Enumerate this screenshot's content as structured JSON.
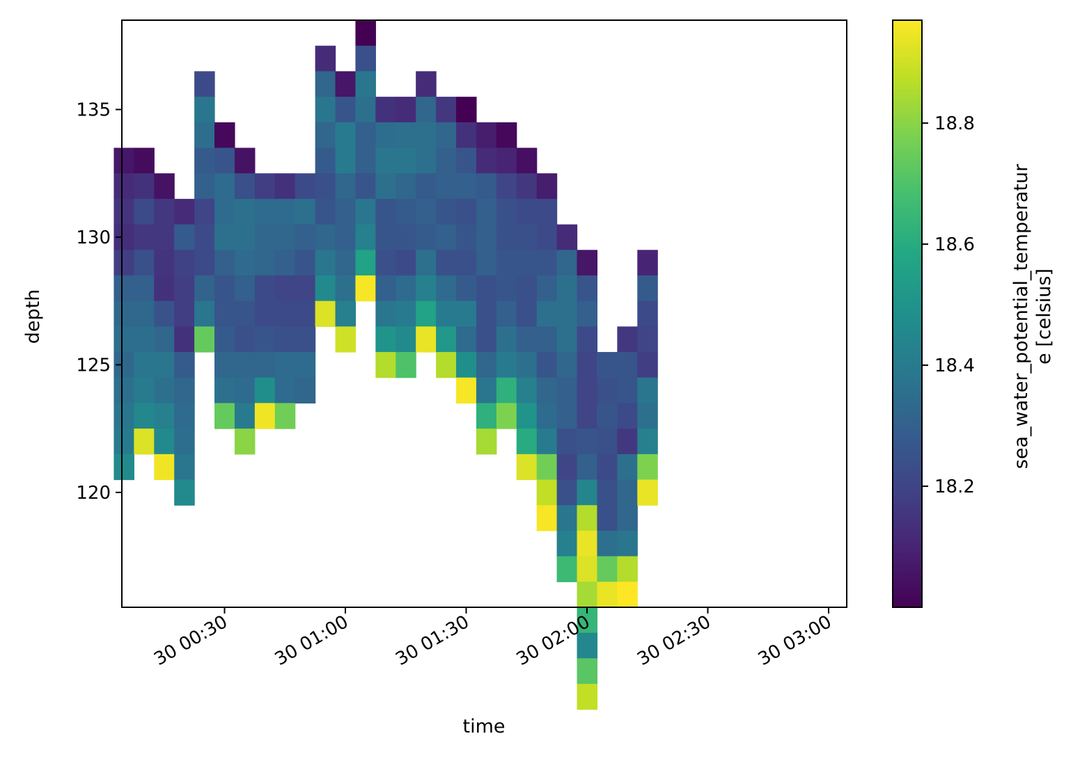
{
  "chart_data": {
    "type": "heatmap",
    "xlabel": "time",
    "ylabel": "depth",
    "colorbar_label_lines": [
      "sea_water_potential_temperatur",
      "e [celsius]"
    ],
    "x_ticks": [
      "30 00:30",
      "30 01:00",
      "30 01:30",
      "30 02:00",
      "30 02:30",
      "30 03:00"
    ],
    "x_tick_times": [
      30,
      60,
      90,
      120,
      150,
      180
    ],
    "y_ticks": [
      "120",
      "125",
      "130",
      "135"
    ],
    "y_tick_values": [
      120,
      125,
      130,
      135
    ],
    "colorbar_ticks": [
      "18.2",
      "18.4",
      "18.6",
      "18.8"
    ],
    "colorbar_tick_values": [
      18.2,
      18.4,
      18.6,
      18.8
    ],
    "colormap": "viridis",
    "xlim_minutes": [
      4.5,
      184.5
    ],
    "ylim": [
      115.5,
      138.5
    ],
    "clim": [
      18.0,
      18.97
    ],
    "bin_minutes": 5,
    "bin_depth": 1,
    "columns": [
      {
        "t": 5,
        "depth_top": 133.5,
        "values": [
          18.06,
          18.12,
          18.15,
          18.13,
          18.18,
          18.3,
          18.33,
          18.35,
          18.33,
          18.36,
          18.38,
          18.4,
          18.46
        ]
      },
      {
        "t": 10,
        "depth_top": 133.5,
        "values": [
          18.03,
          18.14,
          18.22,
          18.16,
          18.24,
          18.3,
          18.33,
          18.35,
          18.38,
          18.4,
          18.45,
          18.92
        ]
      },
      {
        "t": 15,
        "depth_top": 132.5,
        "values": [
          18.05,
          18.16,
          18.16,
          18.15,
          18.14,
          18.25,
          18.32,
          18.38,
          18.36,
          18.42,
          18.46,
          18.95
        ]
      },
      {
        "t": 20,
        "depth_top": 131.5,
        "values": [
          18.12,
          18.28,
          18.19,
          18.18,
          18.18,
          18.14,
          18.28,
          18.32,
          18.34,
          18.35,
          18.38,
          18.46
        ]
      },
      {
        "t": 25,
        "depth_top": 136.5,
        "values": [
          18.22,
          18.38,
          18.35,
          18.28,
          18.3,
          18.2,
          18.22,
          18.22,
          18.31,
          18.38,
          18.74
        ]
      },
      {
        "t": 30,
        "depth_top": 134.5,
        "values": [
          18.02,
          18.26,
          18.34,
          18.34,
          18.36,
          18.3,
          18.26,
          18.26,
          18.28,
          18.32,
          18.36,
          18.74
        ]
      },
      {
        "t": 35,
        "depth_top": 133.5,
        "values": [
          18.05,
          18.24,
          18.36,
          18.36,
          18.34,
          18.3,
          18.26,
          18.24,
          18.32,
          18.34,
          18.4,
          18.8
        ]
      },
      {
        "t": 40,
        "depth_top": 132.5,
        "values": [
          18.18,
          18.34,
          18.32,
          18.32,
          18.22,
          18.22,
          18.26,
          18.32,
          18.48,
          18.95
        ]
      },
      {
        "t": 45,
        "depth_top": 132.5,
        "values": [
          18.14,
          18.34,
          18.32,
          18.3,
          18.2,
          18.22,
          18.24,
          18.34,
          18.34,
          18.76
        ]
      },
      {
        "t": 50,
        "depth_top": 132.5,
        "values": [
          18.22,
          18.36,
          18.3,
          18.26,
          18.2,
          18.22,
          18.24,
          18.34,
          18.32
        ]
      },
      {
        "t": 55,
        "depth_top": 137.5,
        "values": [
          18.12,
          18.32,
          18.38,
          18.32,
          18.28,
          18.24,
          18.26,
          18.32,
          18.38,
          18.46,
          18.92
        ]
      },
      {
        "t": 60,
        "depth_top": 136.5,
        "values": [
          18.06,
          18.26,
          18.4,
          18.4,
          18.32,
          18.3,
          18.3,
          18.32,
          18.36,
          18.42,
          18.9
        ]
      },
      {
        "t": 65,
        "depth_top": 138.5,
        "values": [
          18.0,
          18.24,
          18.38,
          18.36,
          18.3,
          18.3,
          18.26,
          18.38,
          18.42,
          18.56,
          18.96
        ]
      },
      {
        "t": 70,
        "depth_top": 135.5,
        "values": [
          18.14,
          18.35,
          18.38,
          18.36,
          18.26,
          18.26,
          18.24,
          18.3,
          18.38,
          18.5,
          18.86
        ]
      },
      {
        "t": 75,
        "depth_top": 135.5,
        "values": [
          18.12,
          18.36,
          18.38,
          18.32,
          18.28,
          18.26,
          18.22,
          18.34,
          18.4,
          18.46,
          18.7
        ]
      },
      {
        "t": 80,
        "depth_top": 136.5,
        "values": [
          18.12,
          18.32,
          18.36,
          18.36,
          18.28,
          18.3,
          18.28,
          18.36,
          18.42,
          18.56,
          18.94
        ]
      },
      {
        "t": 85,
        "depth_top": 135.5,
        "values": [
          18.16,
          18.32,
          18.3,
          18.3,
          18.26,
          18.3,
          18.24,
          18.34,
          18.4,
          18.52,
          18.86
        ]
      },
      {
        "t": 90,
        "depth_top": 135.5,
        "values": [
          18.0,
          18.14,
          18.26,
          18.3,
          18.24,
          18.26,
          18.24,
          18.28,
          18.4,
          18.34,
          18.48,
          18.96
        ]
      },
      {
        "t": 95,
        "depth_top": 134.5,
        "values": [
          18.08,
          18.12,
          18.28,
          18.3,
          18.3,
          18.3,
          18.24,
          18.24,
          18.24,
          18.32,
          18.38,
          18.62,
          18.84
        ]
      },
      {
        "t": 100,
        "depth_top": 134.5,
        "values": [
          18.02,
          18.1,
          18.2,
          18.24,
          18.24,
          18.26,
          18.26,
          18.3,
          18.36,
          18.4,
          18.62,
          18.78
        ]
      },
      {
        "t": 105,
        "depth_top": 133.5,
        "values": [
          18.04,
          18.16,
          18.22,
          18.24,
          18.26,
          18.24,
          18.24,
          18.3,
          18.36,
          18.42,
          18.5,
          18.6,
          18.92
        ]
      },
      {
        "t": 110,
        "depth_top": 132.5,
        "values": [
          18.08,
          18.22,
          18.22,
          18.26,
          18.3,
          18.36,
          18.3,
          18.26,
          18.32,
          18.34,
          18.4,
          18.76,
          18.88,
          18.96
        ]
      },
      {
        "t": 115,
        "depth_top": 130.5,
        "values": [
          18.12,
          18.32,
          18.36,
          18.36,
          18.36,
          18.32,
          18.3,
          18.3,
          18.24,
          18.2,
          18.24,
          18.38,
          18.42,
          18.66
        ]
      },
      {
        "t": 120,
        "depth_top": 129.5,
        "values": [
          18.06,
          18.26,
          18.3,
          18.22,
          18.2,
          18.2,
          18.2,
          18.26,
          18.3,
          18.44,
          18.86,
          18.94,
          18.92,
          18.84,
          18.64,
          18.45,
          18.72,
          18.88
        ]
      },
      {
        "t": 125,
        "depth_top": 125.5,
        "values": [
          18.26,
          18.24,
          18.26,
          18.24,
          18.22,
          18.24,
          18.24,
          18.36,
          18.74,
          18.94
        ]
      },
      {
        "t": 130,
        "depth_top": 126.5,
        "values": [
          18.16,
          18.26,
          18.26,
          18.22,
          18.16,
          18.36,
          18.32,
          18.32,
          18.38,
          18.86,
          18.97
        ]
      },
      {
        "t": 135,
        "depth_top": 129.5,
        "values": [
          18.1,
          18.28,
          18.22,
          18.2,
          18.18,
          18.38,
          18.36,
          18.42,
          18.78,
          18.94
        ]
      }
    ]
  }
}
